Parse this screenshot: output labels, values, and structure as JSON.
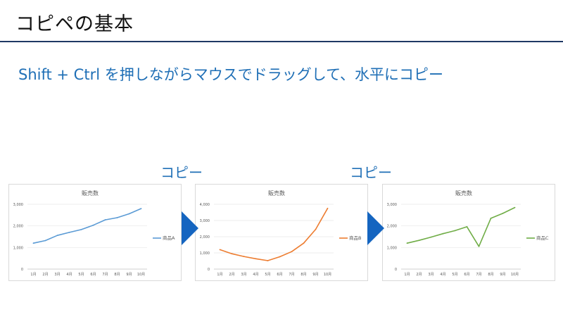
{
  "slide": {
    "title": "コピペの基本",
    "subtitle": "Shift + Ctrl を押しながらマウスでドラッグして、水平にコピー",
    "copy_labels": [
      "コピー",
      "コピー"
    ]
  },
  "arrow_color": "#1565c0",
  "chart_data": [
    {
      "type": "line",
      "title": "販売数",
      "categories": [
        "1月",
        "2月",
        "3月",
        "4月",
        "5月",
        "6月",
        "7月",
        "8月",
        "9月",
        "10月"
      ],
      "series": [
        {
          "name": "商品A",
          "values": [
            1200,
            1320,
            1560,
            1700,
            1830,
            2030,
            2280,
            2380,
            2560,
            2800
          ],
          "color": "#5b9bd5"
        }
      ],
      "y_ticks": [
        "0",
        "1,000",
        "2,000",
        "3,000"
      ],
      "ylim": [
        0,
        3000
      ],
      "legend": "right"
    },
    {
      "type": "line",
      "title": "販売数",
      "categories": [
        "1月",
        "2月",
        "3月",
        "4月",
        "5月",
        "6月",
        "7月",
        "8月",
        "9月",
        "10月"
      ],
      "series": [
        {
          "name": "商品B",
          "values": [
            1200,
            950,
            780,
            640,
            520,
            760,
            1080,
            1600,
            2450,
            3750
          ],
          "color": "#ed7d31"
        }
      ],
      "y_ticks": [
        "0",
        "1,000",
        "2,000",
        "3,000",
        "4,000"
      ],
      "ylim": [
        0,
        4000
      ],
      "legend": "right"
    },
    {
      "type": "line",
      "title": "販売数",
      "categories": [
        "1月",
        "2月",
        "3月",
        "4月",
        "5月",
        "6月",
        "7月",
        "8月",
        "9月",
        "10月"
      ],
      "series": [
        {
          "name": "商品C",
          "values": [
            1200,
            1330,
            1480,
            1640,
            1780,
            1960,
            1050,
            2350,
            2580,
            2850
          ],
          "color": "#70ad47"
        }
      ],
      "y_ticks": [
        "0",
        "1,000",
        "2,000",
        "3,000"
      ],
      "ylim": [
        0,
        3000
      ],
      "legend": "right"
    }
  ]
}
